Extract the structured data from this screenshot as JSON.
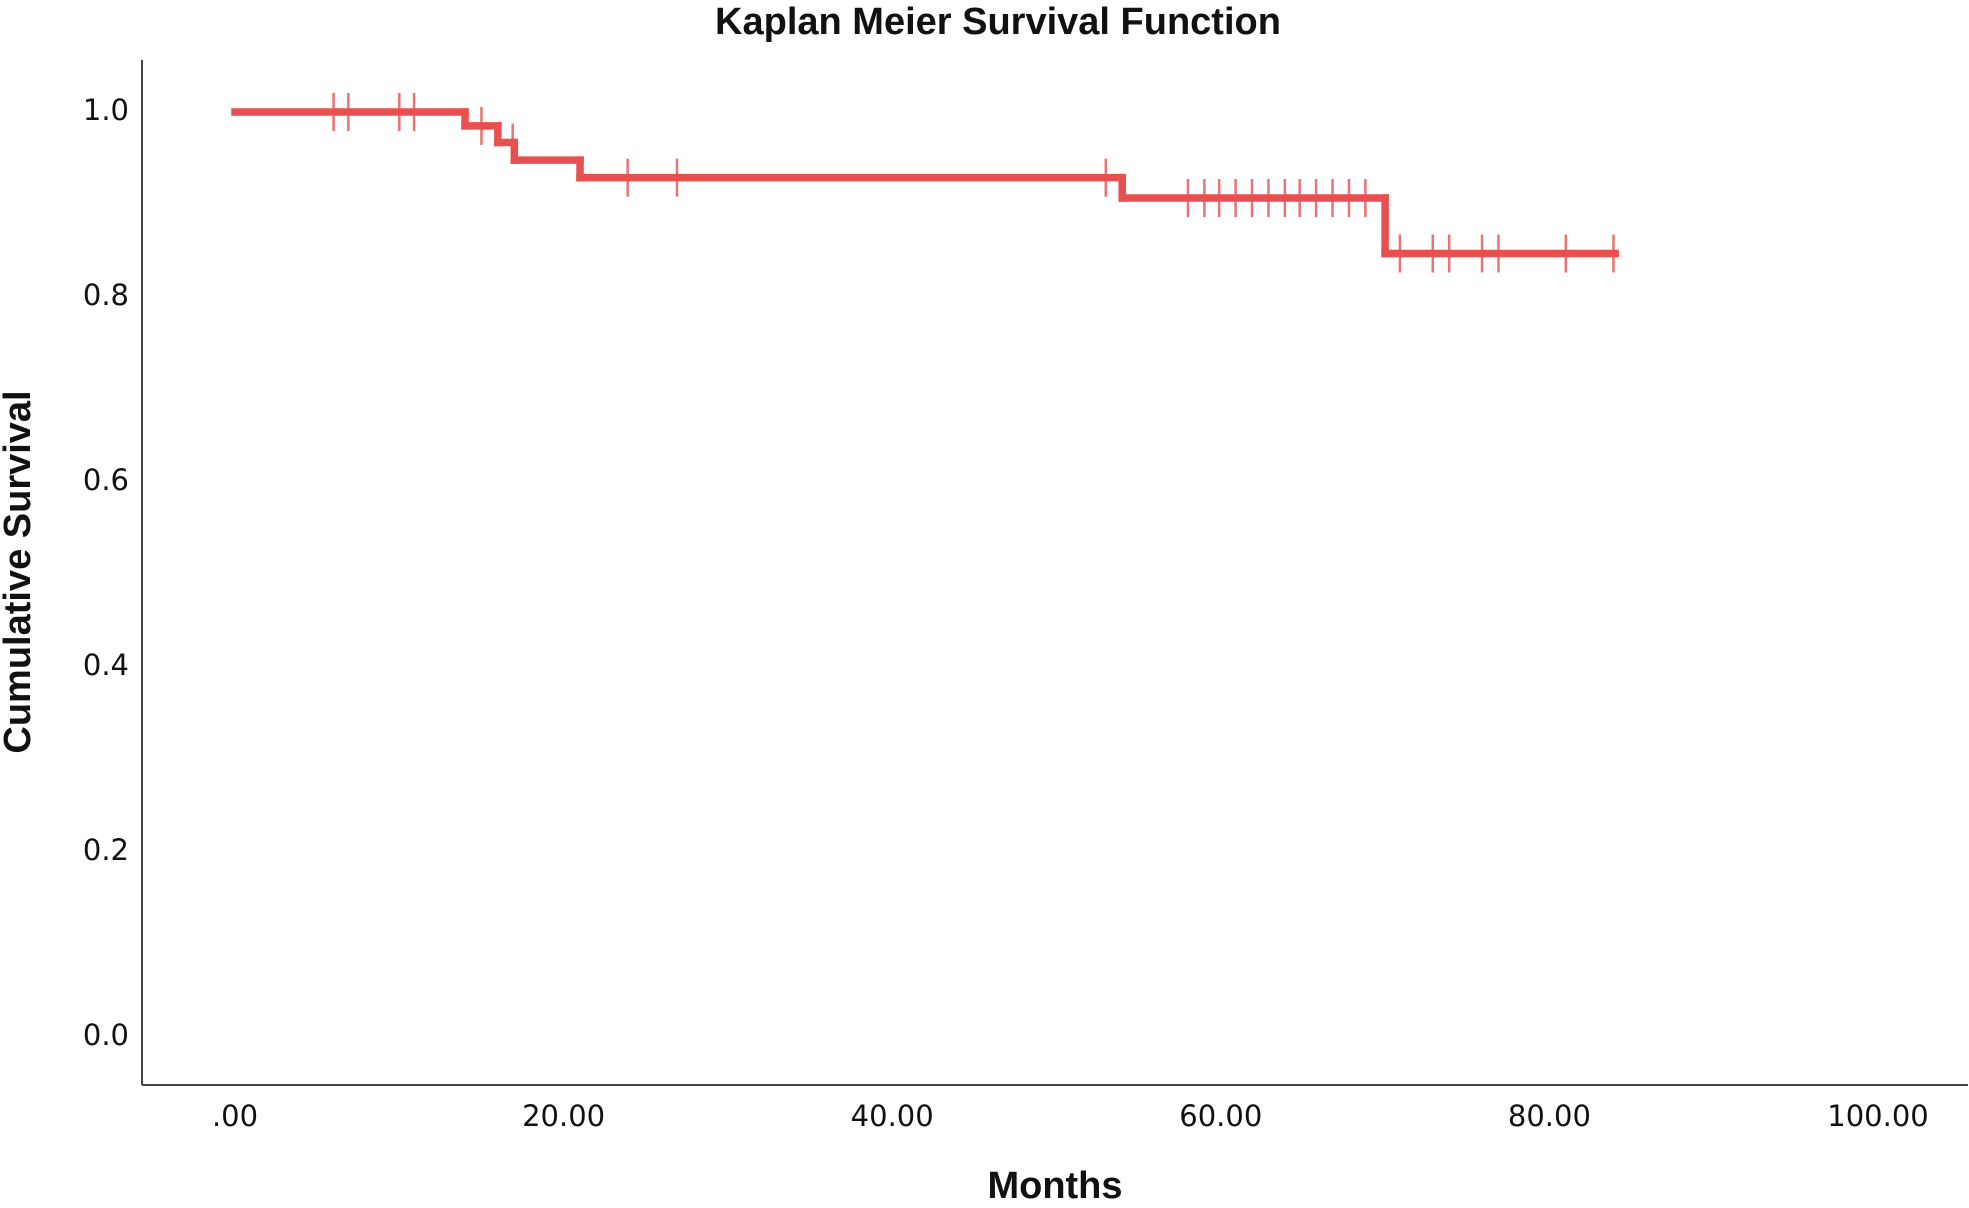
{
  "chart_data": {
    "type": "step",
    "title": "Kaplan Meier Survival Function",
    "x_label": "Months",
    "y_label": "Cumulative Survival",
    "x": [
      0,
      14,
      16,
      17,
      21,
      54,
      70,
      84
    ],
    "values": [
      1.0,
      0.985,
      0.967,
      0.948,
      0.929,
      0.907,
      0.847,
      0.847
    ],
    "censored_x": [
      6,
      6.9,
      10,
      10.9,
      15,
      16.9,
      23.9,
      26.9,
      53,
      58,
      59,
      59.9,
      60.9,
      61.9,
      62.9,
      63.9,
      64.8,
      65.8,
      66.8,
      67.8,
      68.8,
      70.9,
      72.9,
      73.9,
      75.9,
      76.9,
      81,
      83.9
    ],
    "censored_values": [
      1.0,
      1.0,
      1.0,
      1.0,
      0.985,
      0.967,
      0.929,
      0.929,
      0.929,
      0.907,
      0.907,
      0.907,
      0.907,
      0.907,
      0.907,
      0.907,
      0.907,
      0.907,
      0.907,
      0.907,
      0.907,
      0.847,
      0.847,
      0.847,
      0.847,
      0.847,
      0.847,
      0.847
    ],
    "color": "#e8504f",
    "xlim": [
      0,
      100
    ],
    "xticks": [
      {
        "value": 0,
        "label": ".00"
      },
      {
        "value": 20,
        "label": "20.00"
      },
      {
        "value": 40,
        "label": "40.00"
      },
      {
        "value": 60,
        "label": "60.00"
      },
      {
        "value": 80,
        "label": "80.00"
      },
      {
        "value": 100,
        "label": "100.00"
      }
    ],
    "ylim": [
      0,
      1
    ],
    "yticks": [
      {
        "value": 0,
        "label": "0.0"
      },
      {
        "value": 0.2,
        "label": "0.2"
      },
      {
        "value": 0.4,
        "label": "0.4"
      },
      {
        "value": 0.6,
        "label": "0.6"
      },
      {
        "value": 0.8,
        "label": "0.8"
      },
      {
        "value": 1,
        "label": "1.0"
      }
    ],
    "grid": false
  }
}
